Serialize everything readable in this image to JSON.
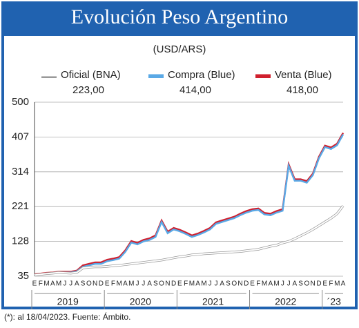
{
  "chart_data": {
    "type": "line",
    "title": "Evolución Peso Argentino",
    "subtitle": "(USD/ARS)",
    "note": "(*): al 18/04/2023. Fuente: Ámbito.",
    "categories": [
      "E",
      "F",
      "M",
      "A",
      "M",
      "J",
      "J",
      "A",
      "S",
      "O",
      "N",
      "D",
      "E",
      "F",
      "M",
      "A",
      "M",
      "J",
      "J",
      "A",
      "S",
      "O",
      "N",
      "D",
      "E",
      "F",
      "M",
      "A",
      "M",
      "J",
      "J",
      "A",
      "S",
      "O",
      "N",
      "D",
      "E",
      "F",
      "M",
      "A",
      "M",
      "J",
      "J",
      "A",
      "S",
      "O",
      "N",
      "D",
      "E",
      "F",
      "M",
      "A"
    ],
    "years": [
      "2019",
      "2020",
      "2021",
      "2022",
      "´23"
    ],
    "ylim": [
      35,
      500
    ],
    "yticks": [
      35,
      128,
      221,
      314,
      407,
      500
    ],
    "grid": true,
    "series": [
      {
        "name": "Oficial (BNA)",
        "color": "#ffffff",
        "legend_value": "223,00",
        "values": [
          38,
          40,
          42,
          43,
          45,
          44,
          43,
          45,
          57,
          59,
          60,
          60,
          61,
          63,
          64,
          66,
          68,
          70,
          72,
          74,
          76,
          78,
          81,
          84,
          87,
          89,
          92,
          93,
          95,
          96,
          97,
          98,
          99,
          100,
          101,
          103,
          105,
          107,
          111,
          115,
          118,
          124,
          128,
          135,
          143,
          151,
          160,
          170,
          180,
          190,
          202,
          223
        ]
      },
      {
        "name": "Compra (Blue)",
        "color": "#5aa9e6",
        "legend_value": "414,00",
        "values": [
          38,
          40,
          42,
          43,
          45,
          45,
          45,
          48,
          60,
          64,
          68,
          68,
          75,
          78,
          82,
          100,
          125,
          120,
          128,
          132,
          140,
          180,
          150,
          160,
          155,
          148,
          140,
          145,
          152,
          160,
          175,
          180,
          185,
          190,
          198,
          205,
          210,
          212,
          200,
          198,
          205,
          210,
          330,
          290,
          290,
          285,
          305,
          350,
          380,
          375,
          385,
          414
        ]
      },
      {
        "name": "Venta (Blue)",
        "color": "#d0202e",
        "legend_value": "418,00",
        "values": [
          40,
          42,
          44,
          45,
          47,
          47,
          47,
          50,
          64,
          68,
          72,
          72,
          79,
          82,
          86,
          104,
          129,
          124,
          132,
          136,
          144,
          184,
          154,
          164,
          159,
          152,
          144,
          149,
          156,
          164,
          179,
          184,
          189,
          194,
          202,
          209,
          214,
          216,
          204,
          202,
          209,
          214,
          334,
          294,
          294,
          289,
          309,
          354,
          384,
          379,
          389,
          418
        ]
      }
    ]
  }
}
